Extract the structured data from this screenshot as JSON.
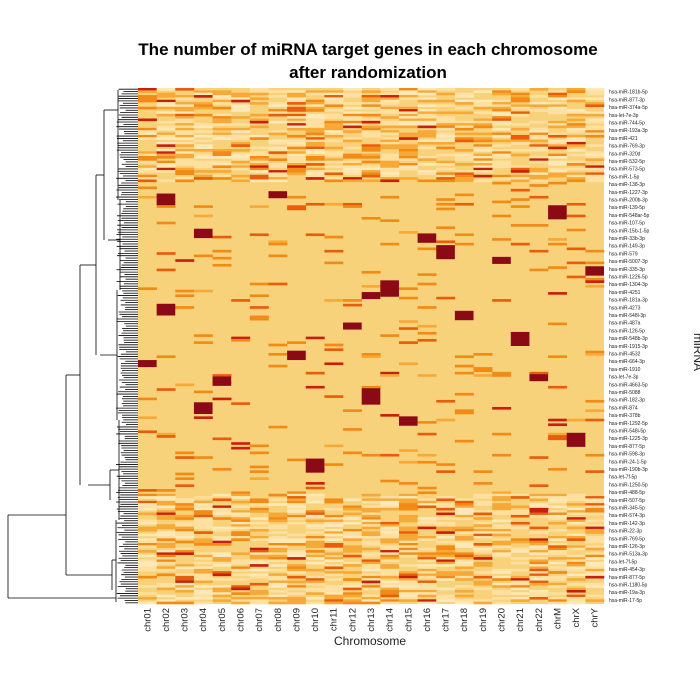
{
  "chart_data": {
    "type": "heatmap",
    "title_line1": "The number of miRNA target genes in each chromosome",
    "title_line2": "after randomization",
    "xlabel": "Chromosome",
    "ylabel": "miRNA",
    "columns": [
      "chr01",
      "chr02",
      "chr03",
      "chr04",
      "chr05",
      "chr06",
      "chr07",
      "chr08",
      "chr09",
      "chr10",
      "chr11",
      "chr12",
      "chr13",
      "chr14",
      "chr15",
      "chr16",
      "chr17",
      "chr18",
      "chr19",
      "chr20",
      "chr21",
      "chr22",
      "chrM",
      "chrX",
      "chrY"
    ],
    "row_labels": [
      "hsa-miR-181b-5p",
      "hsa-miR-877-3p",
      "hsa-miR-374a-5p",
      "hsa-let-7e-3p",
      "hsa-miR-744-5p",
      "hsa-miR-193a-3p",
      "hsa-miR-421",
      "hsa-miR-769-3p",
      "hsa-miR-320d",
      "hsa-miR-532-5p",
      "hsa-miR-573-5p",
      "hsa-miR-1-5p",
      "hsa-miR-138-3p",
      "hsa-miR-1227-3p",
      "hsa-miR-200b-3p",
      "hsa-miR-139-5p",
      "hsa-miR-548ar-5p",
      "hsa-miR-107-5p",
      "hsa-miR-15b-1-5p",
      "hsa-miR-33b-3p",
      "hsa-miR-149-3p",
      "hsa-miR-579",
      "hsa-miR-5007-3p",
      "hsa-miR-335-3p",
      "hsa-miR-1226-5p",
      "hsa-miR-1304-3p",
      "hsa-miR-4251",
      "hsa-miR-181a-3p",
      "hsa-miR-4273",
      "hsa-miR-548l-3p",
      "hsa-miR-487a",
      "hsa-miR-126-5p",
      "hsa-miR-548b-3p",
      "hsa-miR-1915-3p",
      "hsa-miR-4532",
      "hsa-miR-664-3p",
      "hsa-miR-1910",
      "hsa-let-7e-3p",
      "hsa-miR-4663-5p",
      "hsa-miR-5088",
      "hsa-miR-182-3p",
      "hsa-miR-874",
      "hsa-miR-378b",
      "hsa-miR-1292-5p",
      "hsa-miR-548i-5p",
      "hsa-miR-1225-3p",
      "hsa-miR-877-5p",
      "hsa-miR-598-3p",
      "hsa-miR-24-1-5p",
      "hsa-miR-190b-3p",
      "hsa-let-7f-5p",
      "hsa-miR-1250-5p",
      "hsa-miR-488-5p",
      "hsa-miR-507-5p",
      "hsa-miR-345-5p",
      "hsa-miR-574-3p",
      "hsa-miR-142-3p",
      "hsa-miR-22-3p",
      "hsa-miR-769-5p",
      "hsa-miR-126-3p",
      "hsa-miR-513a-3p",
      "hsa-let-7f-5p",
      "hsa-miR-454-3p",
      "hsa-miR-877-5p",
      "hsa-miR-1180-5p",
      "hsa-miR-19a-3p",
      "hsa-miR-17-5p"
    ],
    "color_scale": [
      "#f8d27a",
      "#ffe0a0",
      "#fde9b8",
      "#f7a938",
      "#f28a16",
      "#e85c0c",
      "#c8200e",
      "#8b0a15"
    ],
    "color_scale_low_to_high": true,
    "grid": false,
    "dendrogram": "rows, left side",
    "legend": "none"
  },
  "background_color": "#ffffff"
}
